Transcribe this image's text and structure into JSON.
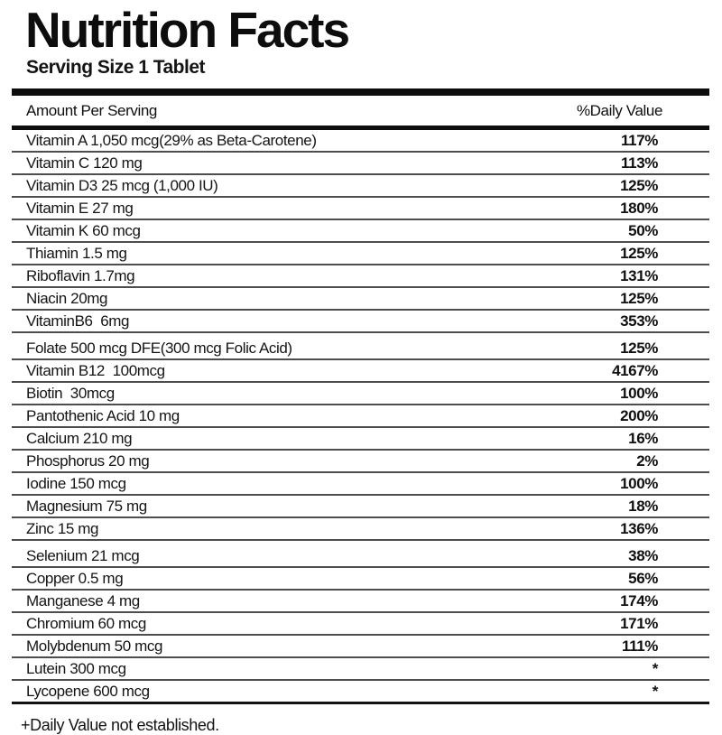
{
  "label": {
    "title": "Nutrition Facts",
    "serving_size": "Serving Size 1 Tablet",
    "footnote": "+Daily Value not established."
  },
  "table": {
    "header": {
      "amount_label": "Amount Per Serving",
      "daily_value_label": "%Daily Value"
    },
    "rows": [
      {
        "name": "Vitamin A 1,050 mcg(29% as Beta-Carotene)",
        "daily_value": "117%",
        "section_break": false
      },
      {
        "name": "Vitamin C 120 mg",
        "daily_value": "113%",
        "section_break": false
      },
      {
        "name": "Vitamin D3 25 mcg (1,000 IU)",
        "daily_value": "125%",
        "section_break": false
      },
      {
        "name": "Vitamin E 27 mg",
        "daily_value": "180%",
        "section_break": false
      },
      {
        "name": "Vitamin K 60 mcg",
        "daily_value": "50%",
        "section_break": false
      },
      {
        "name": "Thiamin 1.5 mg",
        "daily_value": "125%",
        "section_break": false
      },
      {
        "name": "Riboflavin 1.7mg",
        "daily_value": "131%",
        "section_break": false
      },
      {
        "name": "Niacin 20mg",
        "daily_value": "125%",
        "section_break": false
      },
      {
        "name": "VitaminB6  6mg",
        "daily_value": "353%",
        "section_break": false
      },
      {
        "name": "Folate 500 mcg DFE(300 mcg Folic Acid)",
        "daily_value": "125%",
        "section_break": true
      },
      {
        "name": "Vitamin B12  100mcg",
        "daily_value": "4167%",
        "section_break": false
      },
      {
        "name": "Biotin  30mcg",
        "daily_value": "100%",
        "section_break": false
      },
      {
        "name": "Pantothenic Acid 10 mg",
        "daily_value": "200%",
        "section_break": false
      },
      {
        "name": "Calcium 210 mg",
        "daily_value": "16%",
        "section_break": false
      },
      {
        "name": "Phosphorus 20 mg",
        "daily_value": "2%",
        "section_break": false
      },
      {
        "name": "Iodine 150 mcg",
        "daily_value": "100%",
        "section_break": false
      },
      {
        "name": "Magnesium 75 mg",
        "daily_value": "18%",
        "section_break": false
      },
      {
        "name": "Zinc 15 mg",
        "daily_value": "136%",
        "section_break": false
      },
      {
        "name": "Selenium 21 mcg",
        "daily_value": "38%",
        "section_break": true
      },
      {
        "name": "Copper 0.5 mg",
        "daily_value": "56%",
        "section_break": false
      },
      {
        "name": "Manganese 4 mg",
        "daily_value": "174%",
        "section_break": false
      },
      {
        "name": "Chromium 60 mcg",
        "daily_value": "171%",
        "section_break": false
      },
      {
        "name": "Molybdenum 50 mcg",
        "daily_value": "111%",
        "section_break": false
      },
      {
        "name": "Lutein 300 mcg",
        "daily_value": "*",
        "section_break": false
      },
      {
        "name": "Lycopene 600 mcg",
        "daily_value": "*",
        "section_break": false
      }
    ]
  }
}
